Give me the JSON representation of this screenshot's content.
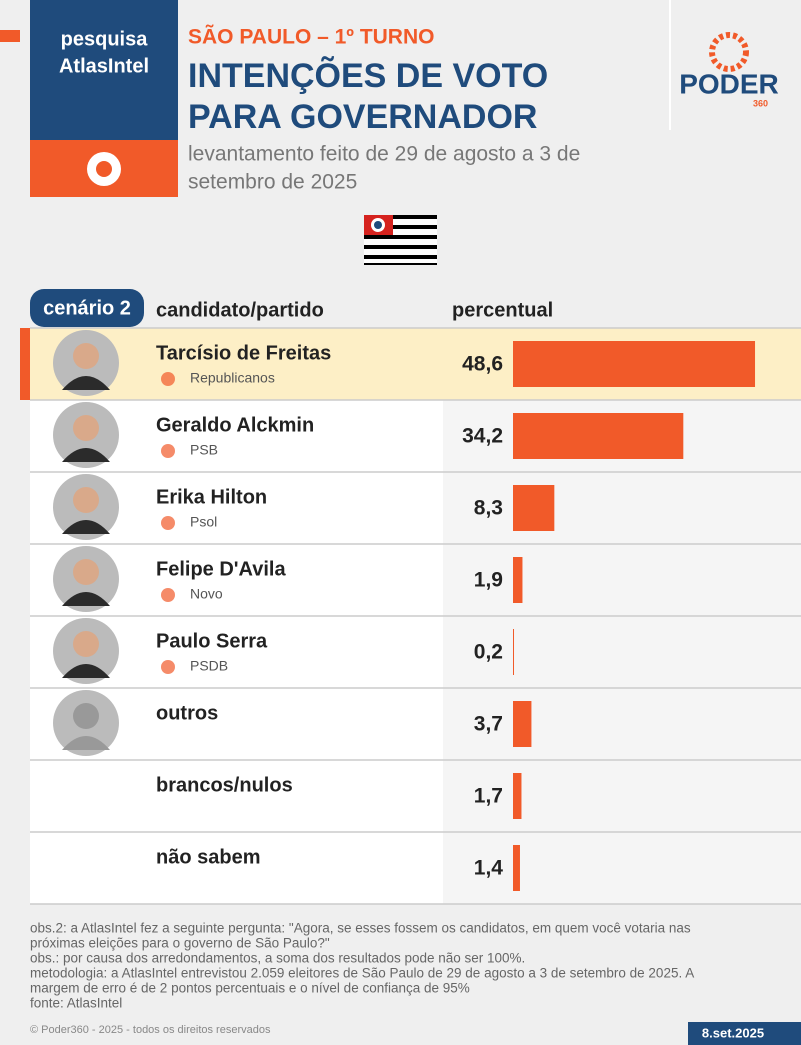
{
  "header": {
    "brand": [
      "pesquisa",
      "AtlasIntel"
    ],
    "kicker": "SÃO PAULO – 1º TURNO",
    "title_lines": [
      "INTENÇÕES DE VOTO",
      "PARA GOVERNADOR"
    ],
    "subtitle_lines": [
      "levantamento feito de 29 de agosto a 3 de",
      "setembro de 2025"
    ],
    "logo": "PODER",
    "logo_sub": "360"
  },
  "chart_data": {
    "type": "bar",
    "orientation": "horizontal",
    "scenario": "cenário 2",
    "category_header": "candidato/partido",
    "value_header": "percentual",
    "categories": [
      "Tarcísio de Freitas",
      "Geraldo Alckmin",
      "Erika Hilton",
      "Felipe D'Avila",
      "Paulo Serra",
      "outros",
      "brancos/nulos",
      "não sabem"
    ],
    "parties": [
      "Republicanos",
      "PSB",
      "Psol",
      "Novo",
      "PSDB",
      null,
      null,
      null
    ],
    "values": [
      48.6,
      34.2,
      8.3,
      1.9,
      0.2,
      3.7,
      1.7,
      1.4
    ],
    "value_labels": [
      "48,6",
      "34,2",
      "8,3",
      "1,9",
      "0,2",
      "3,7",
      "1,7",
      "1,4"
    ],
    "color": "#f15a29",
    "highlight": 0
  },
  "notes": [
    "obs.2: a AtlasIntel fez a seguinte pergunta: \"Agora, se esses fossem os candidatos, em quem você votaria nas",
    "próximas eleições para o governo de São Paulo?\"",
    "obs.: por causa dos arredondamentos, a soma dos resultados pode não ser 100%.",
    "metodologia: a AtlasIntel entrevistou 2.059 eleitores de São Paulo de 29 de agosto a 3 de setembro de 2025. A",
    "margem de erro é de 2 pontos percentuais e o nível de confiança de 95%",
    "fonte: AtlasIntel"
  ],
  "footer": {
    "copyright": "© Poder360 - 2025 - todos os direitos reservados",
    "date": "8.set.2025"
  }
}
